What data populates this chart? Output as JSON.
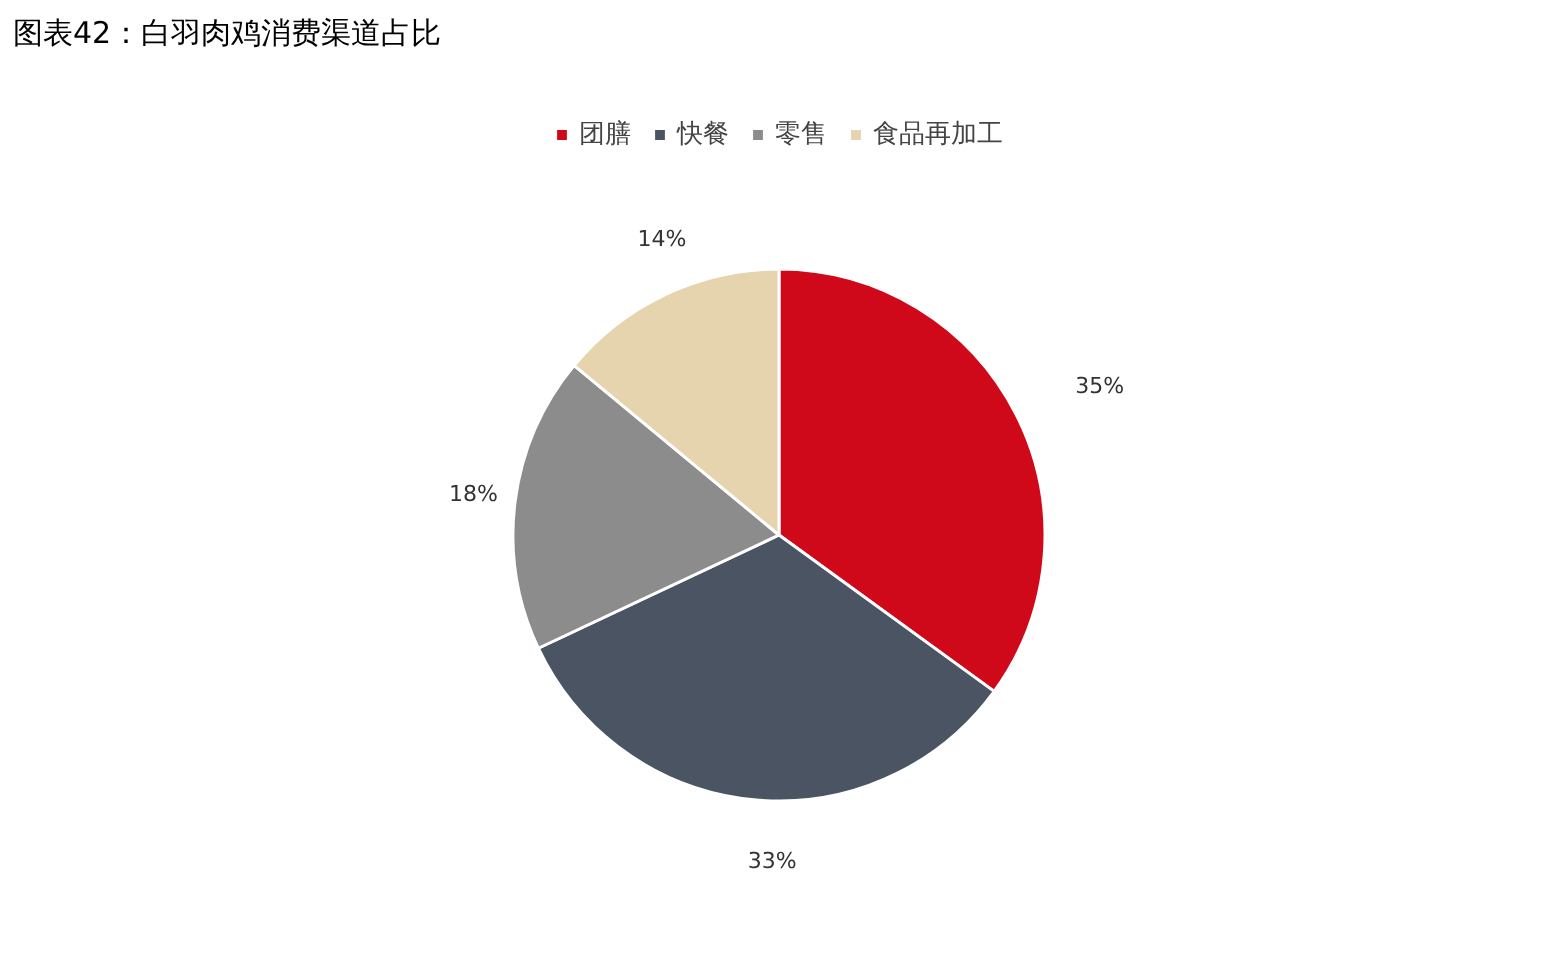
{
  "chart_data": {
    "type": "pie",
    "title": "图表42：白羽肉鸡消费渠道占比",
    "categories": [
      "团膳",
      "快餐",
      "零售",
      "食品再加工"
    ],
    "values": [
      35,
      33,
      18,
      14
    ],
    "value_labels": [
      "35%",
      "33%",
      "18%",
      "14%"
    ],
    "colors": [
      "#d0091a",
      "#4a5462",
      "#8c8c8c",
      "#e5d4ad"
    ],
    "legend": "top"
  }
}
